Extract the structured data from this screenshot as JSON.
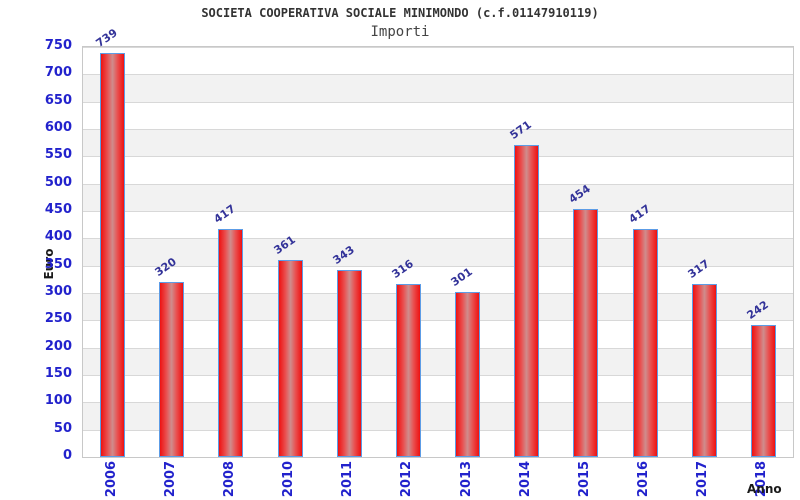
{
  "chart_data": {
    "type": "bar",
    "title": "SOCIETA COOPERATIVA SOCIALE MINIMONDO (c.f.01147910119)",
    "subtitle": "Importi",
    "xlabel": "Anno",
    "ylabel": "Euro",
    "categories": [
      "2006",
      "2007",
      "2008",
      "2010",
      "2011",
      "2012",
      "2013",
      "2014",
      "2015",
      "2016",
      "2017",
      "2018"
    ],
    "values": [
      739,
      320,
      417,
      361,
      343,
      316,
      301,
      571,
      454,
      417,
      317,
      242
    ],
    "ylim": [
      0,
      750
    ],
    "ytick_step": 50,
    "grid": true,
    "legend": false,
    "value_labels_shown": true,
    "style": {
      "title_color": "#333333",
      "subtitle_color": "#444444",
      "tick_label_color": "#2222cc",
      "value_label_color": "#333399",
      "axis_title_color": "#1a1a1a",
      "bar_edge_color": "#ee1111",
      "bar_mid_color": "#e95050",
      "bar_center_color": "#cf8d8d",
      "bar_border_color": "#5c9ce6",
      "band_color": "#f2f2f2",
      "band_alt_color": "#ffffff",
      "grid_color": "#d8d8d8",
      "plot_border_color": "#c8c8c8",
      "background": "#ffffff"
    }
  }
}
